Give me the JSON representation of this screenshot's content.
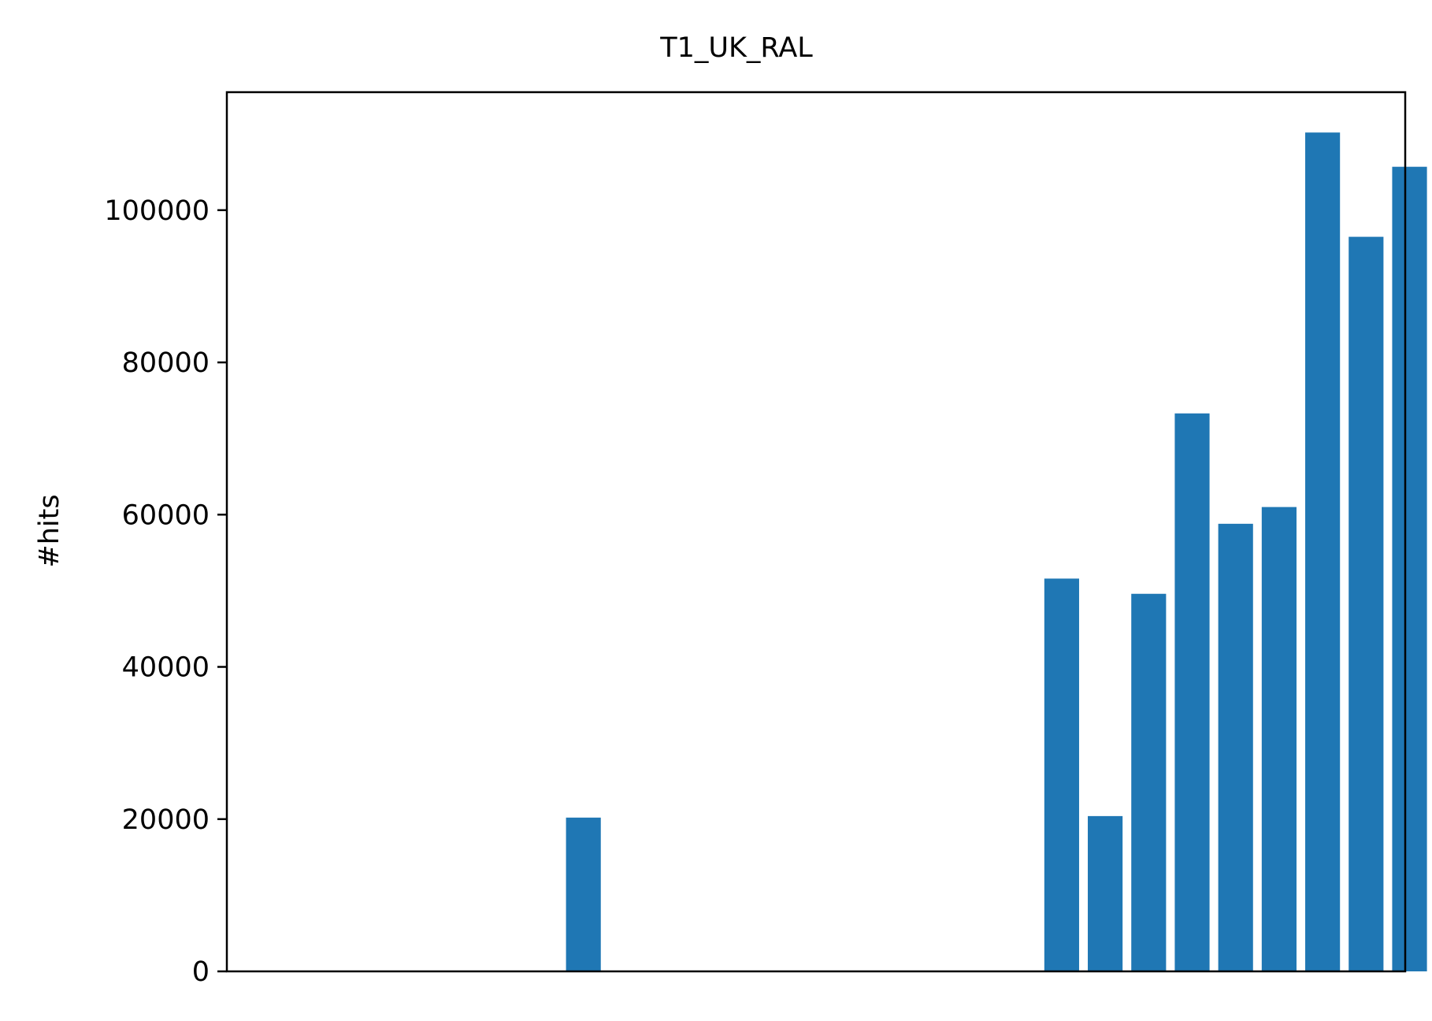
{
  "chart_data": {
    "type": "bar",
    "title": "T1_UK_RAL",
    "xlabel": "",
    "ylabel": "#hits",
    "ylim": [
      0,
      115500
    ],
    "yticks": [
      0,
      20000,
      40000,
      60000,
      80000,
      100000
    ],
    "ytick_labels": [
      "0",
      "20000",
      "40000",
      "60000",
      "80000",
      "100000"
    ],
    "xticks_visible": false,
    "grid": false,
    "bar_color": "#1f77b4",
    "x": [
      0,
      1,
      2,
      3,
      4,
      5,
      6,
      7,
      8,
      9,
      10,
      11,
      12,
      13,
      14,
      15,
      16,
      17,
      18,
      19,
      20,
      21,
      22,
      23,
      24
    ],
    "values": [
      0,
      0,
      0,
      0,
      20200,
      0,
      0,
      0,
      0,
      0,
      0,
      0,
      0,
      0,
      0,
      51600,
      20400,
      49600,
      73300,
      58800,
      61000,
      110200,
      96500,
      105700,
      0
    ],
    "xlim": [
      -4.2,
      22.9
    ]
  }
}
